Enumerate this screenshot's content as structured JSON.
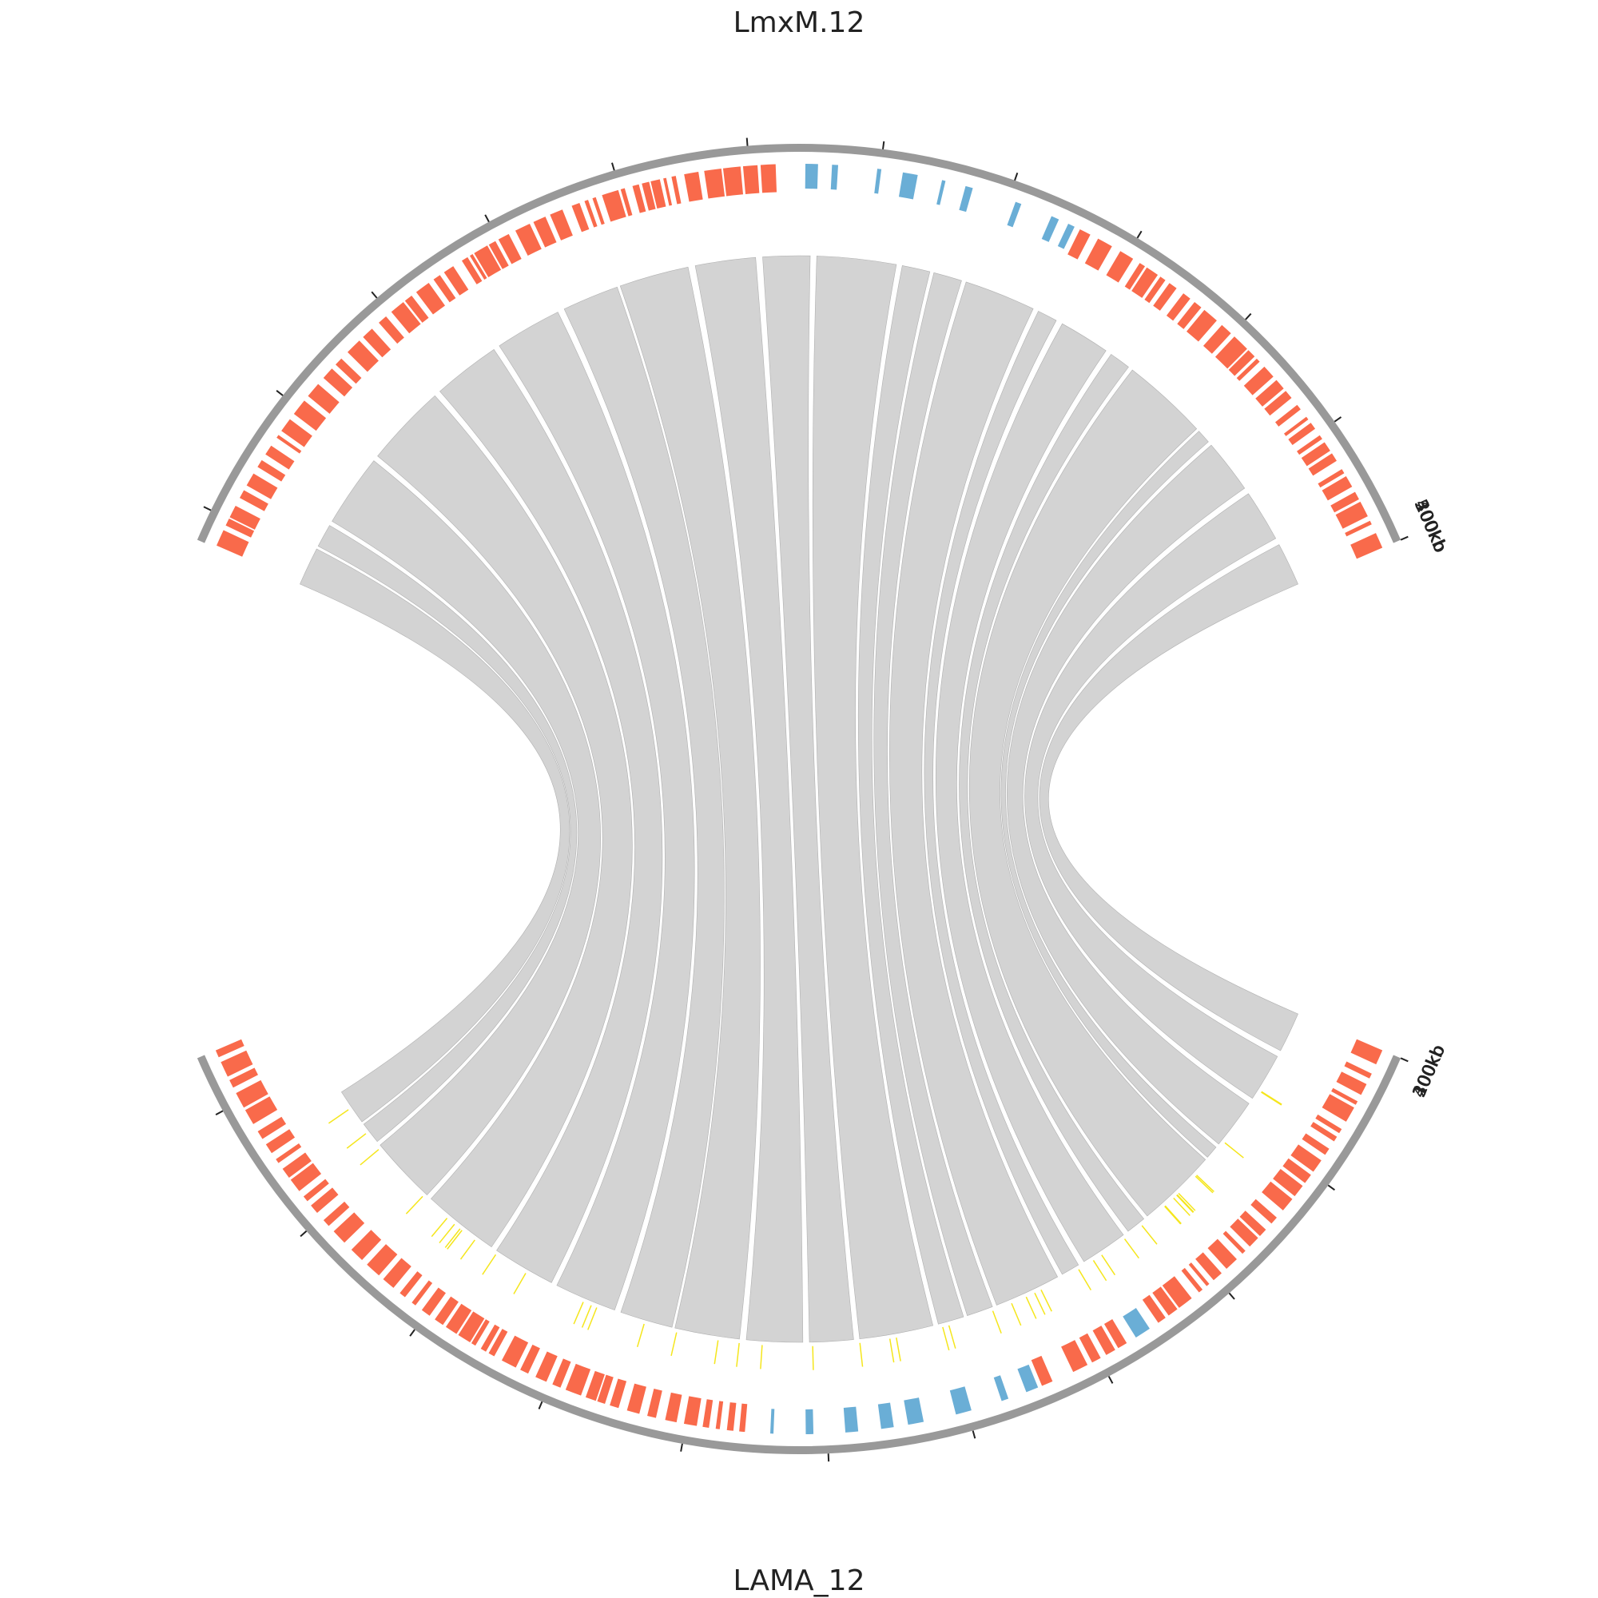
{
  "top_chromosome": {
    "name": "LmxM.12",
    "tick_labels": [
      "100kb",
      "200kb",
      "300kb",
      "400kb",
      "500kb"
    ]
  },
  "bottom_chromosome": {
    "name": "LAMA_12",
    "tick_labels": [
      "100kb",
      "200kb",
      "300kb",
      "400kb"
    ]
  },
  "colors": {
    "backbone": "#999999",
    "gene_forward": "#f96a4b",
    "gene_reverse": "#6aaed6",
    "feature_minor": "#f5e61c",
    "synteny_ribbon": "#d3d3d3",
    "synteny_edge": "#b0b0b0"
  }
}
